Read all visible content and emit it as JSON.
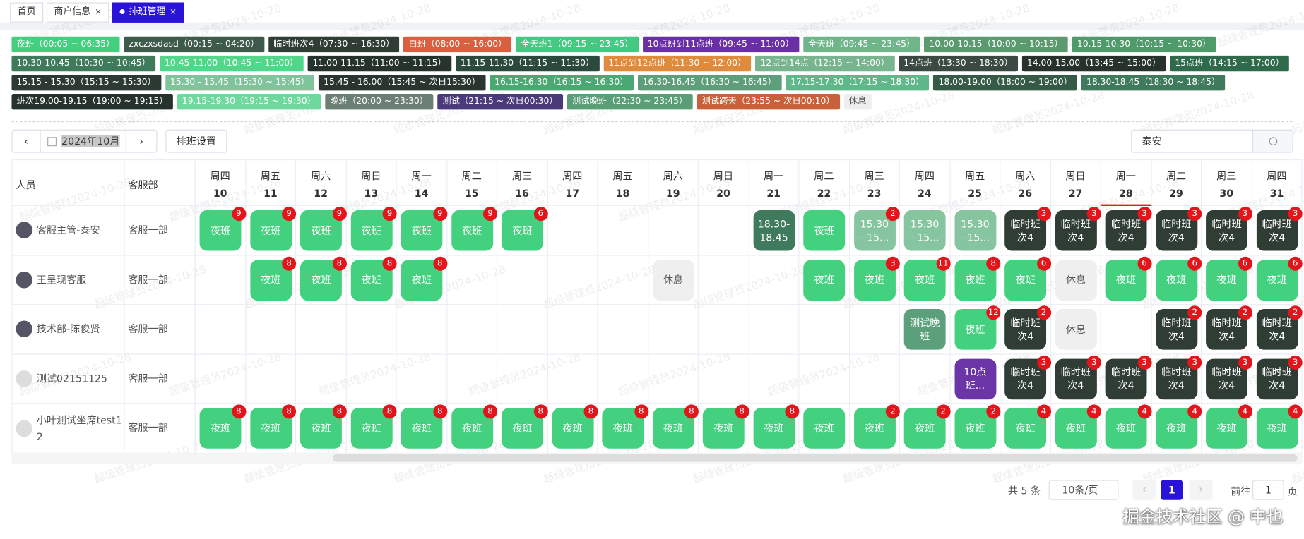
{
  "tabs": [
    {
      "label": "首页"
    },
    {
      "label": "商户信息",
      "close": "×"
    },
    {
      "label": "排班管理",
      "close": "×"
    }
  ],
  "shifts": [
    {
      "label": "夜班（00:05 ~ 06:35）",
      "color": "#44cf7f"
    },
    {
      "label": "zxczxsdasd（00:15 ~ 04:20）",
      "color": "#3e5a4b"
    },
    {
      "label": "临时班次4（07:30 ~ 16:30）",
      "color": "#2f3d35"
    },
    {
      "label": "白班（08:00 ~ 16:00）",
      "color": "#d9603f"
    },
    {
      "label": "全天班1（09:15 ~ 23:45）",
      "color": "#45c882"
    },
    {
      "label": "10点班到11点班（09:45 ~ 11:00）",
      "color": "#6a2fa5"
    },
    {
      "label": "全天班（09:45 ~ 23:45）",
      "color": "#6fb58a"
    },
    {
      "label": "10.00-10.15（10:00 ~ 10:15）",
      "color": "#5a9a6e"
    },
    {
      "label": "10.15-10.30（10:15 ~ 10:30）",
      "color": "#4f9a6a"
    },
    {
      "label": "10.30-10.45（10:30 ~ 10:45）",
      "color": "#3f7a5a"
    },
    {
      "label": "10.45-11.00（10:45 ~ 11:00）",
      "color": "#52d68a"
    },
    {
      "label": "11.00-11.15（11:00 ~ 11:15）",
      "color": "#26332d"
    },
    {
      "label": "11.15-11.30（11:15 ~ 11:30）",
      "color": "#2c4a3c"
    },
    {
      "label": "11点到12点班（11:30 ~ 12:00）",
      "color": "#e08a3c"
    },
    {
      "label": "12点到14点（12:15 ~ 14:00）",
      "color": "#78b48e"
    },
    {
      "label": "14点班（13:30 ~ 18:30）",
      "color": "#3a4a42"
    },
    {
      "label": "14.00-15.00（13:45 ~ 15:00）",
      "color": "#26332d"
    },
    {
      "label": "15点班（14:15 ~ 17:00）",
      "color": "#2f6a4a"
    },
    {
      "label": "15.15 - 15.30（15:15 ~ 15:30）",
      "color": "#2c3a33"
    },
    {
      "label": "15.30 - 15.45（15:30 ~ 15:45）",
      "color": "#7fc49a"
    },
    {
      "label": "15.45 - 16.00（15:45 ~ 次日15:30）",
      "color": "#2a3530"
    },
    {
      "label": "16.15-16.30（16:15 ~ 16:30）",
      "color": "#4aa872"
    },
    {
      "label": "16.30-16.45（16:30 ~ 16:45）",
      "color": "#5f9e7a"
    },
    {
      "label": "17.15-17.30（17:15 ~ 18:30）",
      "color": "#5fb88a"
    },
    {
      "label": "18.00-19.00（18:00 ~ 19:00）",
      "color": "#355a46"
    },
    {
      "label": "18.30-18.45（18:30 ~ 18:45）",
      "color": "#3f7a5c"
    },
    {
      "label": "班次19.00-19.15（19:00 ~ 19:15）",
      "color": "#26332d"
    },
    {
      "label": "19.15-19.30（19:15 ~ 19:30）",
      "color": "#6fd89c"
    },
    {
      "label": "晚班（20:00 ~ 23:30）",
      "color": "#6b7f74"
    },
    {
      "label": "测试（21:15 ~ 次日00:30）",
      "color": "#4a3a7a"
    },
    {
      "label": "测试晚班（22:30 ~ 23:45）",
      "color": "#5a9e78"
    },
    {
      "label": "测试跨天（23:55 ~ 次日00:10）",
      "color": "#c8603a"
    },
    {
      "label": "休息",
      "color": "#eeeeee"
    }
  ],
  "toolbar": {
    "month": "2024年10月",
    "settings": "排班设置",
    "search": "泰安"
  },
  "table": {
    "columns": [
      "人员",
      "客服部"
    ],
    "days": [
      {
        "weekday": "周四",
        "date": 10
      },
      {
        "weekday": "周五",
        "date": 11
      },
      {
        "weekday": "周六",
        "date": 12
      },
      {
        "weekday": "周日",
        "date": 13
      },
      {
        "weekday": "周一",
        "date": 14
      },
      {
        "weekday": "周二",
        "date": 15
      },
      {
        "weekday": "周三",
        "date": 16
      },
      {
        "weekday": "周四",
        "date": 17
      },
      {
        "weekday": "周五",
        "date": 18
      },
      {
        "weekday": "周六",
        "date": 19
      },
      {
        "weekday": "周日",
        "date": 20
      },
      {
        "weekday": "周一",
        "date": 21
      },
      {
        "weekday": "周二",
        "date": 22
      },
      {
        "weekday": "周三",
        "date": 23
      },
      {
        "weekday": "周四",
        "date": 24
      },
      {
        "weekday": "周五",
        "date": 25
      },
      {
        "weekday": "周六",
        "date": 26
      },
      {
        "weekday": "周日",
        "date": 27
      },
      {
        "weekday": "周一",
        "date": 28
      },
      {
        "weekday": "周二",
        "date": 29
      },
      {
        "weekday": "周三",
        "date": 30
      },
      {
        "weekday": "周四",
        "date": 31
      }
    ],
    "rows": [
      {
        "name": "客服主管-泰安",
        "dept": "客服一部",
        "cells": [
          {
            "text": "夜班",
            "badge": 9,
            "color": "#43d17f"
          },
          {
            "text": "夜班",
            "badge": 9,
            "color": "#43d17f"
          },
          {
            "text": "夜班",
            "badge": 9,
            "color": "#43d17f"
          },
          {
            "text": "夜班",
            "badge": 9,
            "color": "#43d17f"
          },
          {
            "text": "夜班",
            "badge": 9,
            "color": "#43d17f"
          },
          {
            "text": "夜班",
            "badge": 9,
            "color": "#43d17f"
          },
          {
            "text": "夜班",
            "badge": 6,
            "color": "#43d17f"
          },
          null,
          null,
          null,
          null,
          {
            "text": "18.30-18.45",
            "color": "#3f7a5c"
          },
          {
            "text": "夜班",
            "color": "#43d17f"
          },
          {
            "text": "15.30 - 15...",
            "badge": 2,
            "color": "#86c5a0"
          },
          {
            "text": "15.30 - 15...",
            "color": "#86c5a0"
          },
          {
            "text": "15.30 - 15...",
            "color": "#86c5a0"
          },
          {
            "text": "临时班次4",
            "badge": 3,
            "color": "#2f3d35"
          },
          {
            "text": "临时班次4",
            "badge": 3,
            "color": "#2f3d35"
          },
          {
            "text": "临时班次4",
            "badge": 3,
            "color": "#2f3d35"
          },
          {
            "text": "临时班次4",
            "badge": 3,
            "color": "#2f3d35"
          },
          {
            "text": "临时班次4",
            "badge": 3,
            "color": "#2f3d35"
          },
          {
            "text": "临时班次4",
            "badge": 3,
            "color": "#2f3d35"
          }
        ]
      },
      {
        "name": "王呈现客服",
        "dept": "客服一部",
        "cells": [
          null,
          {
            "text": "夜班",
            "badge": 8,
            "color": "#43d17f"
          },
          {
            "text": "夜班",
            "badge": 8,
            "color": "#43d17f"
          },
          {
            "text": "夜班",
            "badge": 8,
            "color": "#43d17f"
          },
          {
            "text": "夜班",
            "badge": 8,
            "color": "#43d17f"
          },
          null,
          null,
          null,
          null,
          {
            "text": "休息",
            "color": "#efefef"
          },
          null,
          null,
          {
            "text": "夜班",
            "color": "#43d17f"
          },
          {
            "text": "夜班",
            "badge": 3,
            "color": "#43d17f"
          },
          {
            "text": "夜班",
            "badge": 11,
            "color": "#43d17f"
          },
          {
            "text": "夜班",
            "badge": 8,
            "color": "#43d17f"
          },
          {
            "text": "夜班",
            "badge": 6,
            "color": "#43d17f"
          },
          {
            "text": "休息",
            "color": "#efefef"
          },
          {
            "text": "夜班",
            "badge": 6,
            "color": "#43d17f"
          },
          {
            "text": "夜班",
            "badge": 6,
            "color": "#43d17f"
          },
          {
            "text": "夜班",
            "badge": 6,
            "color": "#43d17f"
          },
          {
            "text": "夜班",
            "badge": 6,
            "color": "#43d17f"
          }
        ]
      },
      {
        "name": "技术部-陈俊贤",
        "dept": "客服一部",
        "cells": [
          null,
          null,
          null,
          null,
          null,
          null,
          null,
          null,
          null,
          null,
          null,
          null,
          null,
          null,
          {
            "text": "测试晚班",
            "color": "#5b9f7b"
          },
          {
            "text": "夜班",
            "badge": 12,
            "color": "#43d17f"
          },
          {
            "text": "临时班次4",
            "badge": 2,
            "color": "#2f3d35"
          },
          {
            "text": "休息",
            "color": "#efefef"
          },
          null,
          {
            "text": "临时班次4",
            "badge": 2,
            "color": "#2f3d35"
          },
          {
            "text": "临时班次4",
            "badge": 2,
            "color": "#2f3d35"
          },
          {
            "text": "临时班次4",
            "badge": 2,
            "color": "#2f3d35"
          }
        ]
      },
      {
        "name": "测试02151125",
        "dept": "客服一部",
        "cells": [
          null,
          null,
          null,
          null,
          null,
          null,
          null,
          null,
          null,
          null,
          null,
          null,
          null,
          null,
          null,
          {
            "text": "10点班...",
            "color": "#6b35a8"
          },
          {
            "text": "临时班次4",
            "badge": 3,
            "color": "#2f3d35"
          },
          {
            "text": "临时班次4",
            "badge": 3,
            "color": "#2f3d35"
          },
          {
            "text": "临时班次4",
            "badge": 3,
            "color": "#2f3d35"
          },
          {
            "text": "临时班次4",
            "badge": 3,
            "color": "#2f3d35"
          },
          {
            "text": "临时班次4",
            "badge": 3,
            "color": "#2f3d35"
          },
          {
            "text": "临时班次4",
            "badge": 3,
            "color": "#2f3d35"
          }
        ]
      },
      {
        "name": "小叶测试坐席test12",
        "dept": "客服一部",
        "cells": [
          {
            "text": "夜班",
            "badge": 8,
            "color": "#43d17f"
          },
          {
            "text": "夜班",
            "badge": 8,
            "color": "#43d17f"
          },
          {
            "text": "夜班",
            "badge": 8,
            "color": "#43d17f"
          },
          {
            "text": "夜班",
            "badge": 8,
            "color": "#43d17f"
          },
          {
            "text": "夜班",
            "badge": 8,
            "color": "#43d17f"
          },
          {
            "text": "夜班",
            "badge": 8,
            "color": "#43d17f"
          },
          {
            "text": "夜班",
            "badge": 8,
            "color": "#43d17f"
          },
          {
            "text": "夜班",
            "badge": 8,
            "color": "#43d17f"
          },
          {
            "text": "夜班",
            "badge": 8,
            "color": "#43d17f"
          },
          {
            "text": "夜班",
            "badge": 8,
            "color": "#43d17f"
          },
          {
            "text": "夜班",
            "badge": 8,
            "color": "#43d17f"
          },
          {
            "text": "夜班",
            "badge": 8,
            "color": "#43d17f"
          },
          {
            "text": "夜班",
            "color": "#43d17f"
          },
          {
            "text": "夜班",
            "badge": 2,
            "color": "#43d17f"
          },
          {
            "text": "夜班",
            "badge": 2,
            "color": "#43d17f"
          },
          {
            "text": "夜班",
            "badge": 2,
            "color": "#43d17f"
          },
          {
            "text": "夜班",
            "badge": 4,
            "color": "#43d17f"
          },
          {
            "text": "夜班",
            "badge": 4,
            "color": "#43d17f"
          },
          {
            "text": "夜班",
            "badge": 4,
            "color": "#43d17f"
          },
          {
            "text": "夜班",
            "badge": 4,
            "color": "#43d17f"
          },
          {
            "text": "夜班",
            "badge": 4,
            "color": "#43d17f"
          },
          {
            "text": "夜班",
            "badge": 4,
            "color": "#43d17f"
          }
        ]
      }
    ]
  },
  "pagination": {
    "total": "共 5 条",
    "page_size": "10条/页",
    "current": 1,
    "goto": "前往",
    "goto_value": 1,
    "page_unit": "页"
  },
  "watermark": "超级管理员2024-10-28",
  "credit": "掘金技术社区 @ 中也"
}
